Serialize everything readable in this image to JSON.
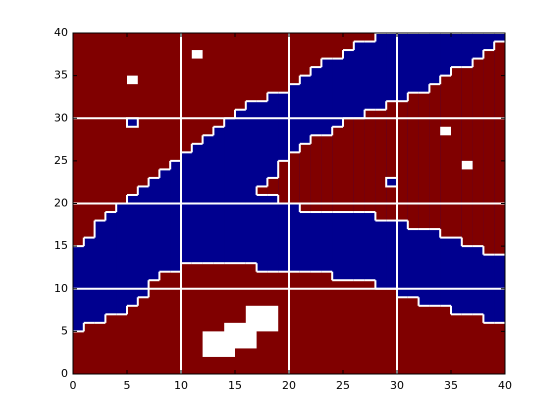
{
  "chart_data": {
    "type": "region-map",
    "xlim": [
      0,
      40
    ],
    "ylim": [
      0,
      40
    ],
    "xticks": [
      0,
      5,
      10,
      15,
      20,
      25,
      30,
      35,
      40
    ],
    "yticks": [
      0,
      5,
      10,
      15,
      20,
      25,
      30,
      35,
      40
    ],
    "grid": [
      10,
      20,
      30
    ],
    "background_color": "#800000",
    "region_color": "#00008f",
    "boundary_color": "#ffffff",
    "x": [
      0,
      1,
      2,
      3,
      4,
      5,
      6,
      7,
      8,
      9,
      10,
      11,
      12,
      13,
      14,
      15,
      16,
      17,
      18,
      19,
      20,
      21,
      22,
      23,
      24,
      25,
      26,
      27,
      28,
      29,
      30,
      31,
      32,
      33,
      34,
      35,
      36,
      37,
      38,
      39
    ],
    "blue_lower": [
      5,
      6,
      6,
      7,
      7,
      8,
      9,
      11,
      12,
      12,
      13,
      13,
      13,
      13,
      13,
      13,
      13,
      12,
      12,
      12,
      12,
      12,
      12,
      12,
      11,
      11,
      11,
      11,
      10,
      10,
      9,
      9,
      8,
      8,
      8,
      7,
      7,
      7,
      6,
      6
    ],
    "blue_upper": [
      15,
      16,
      18,
      19,
      20,
      21,
      22,
      23,
      24,
      25,
      26,
      27,
      28,
      29,
      30,
      31,
      32,
      32,
      33,
      33,
      34,
      35,
      36,
      37,
      37,
      38,
      39,
      39,
      40,
      40,
      40,
      40,
      40,
      40,
      40,
      40,
      40,
      40,
      40,
      40
    ],
    "red_bottom": [
      null,
      null,
      null,
      null,
      null,
      null,
      null,
      null,
      null,
      null,
      null,
      null,
      null,
      null,
      null,
      null,
      null,
      21,
      21,
      20,
      20,
      19,
      19,
      19,
      19,
      19,
      19,
      19,
      18,
      18,
      18,
      17,
      17,
      17,
      16,
      16,
      15,
      15,
      14,
      14
    ],
    "red_top": [
      null,
      null,
      null,
      null,
      null,
      null,
      null,
      null,
      null,
      null,
      null,
      null,
      null,
      null,
      null,
      null,
      null,
      22,
      23,
      25,
      26,
      27,
      28,
      28,
      29,
      30,
      30,
      31,
      31,
      32,
      32,
      33,
      33,
      34,
      35,
      36,
      36,
      37,
      38,
      39
    ],
    "blue_cells": [
      [
        5,
        29
      ],
      [
        29,
        22
      ]
    ],
    "obstacles": [
      [
        5,
        6,
        34,
        35
      ],
      [
        11,
        12,
        37,
        38
      ],
      [
        34,
        35,
        28,
        29
      ],
      [
        36,
        37,
        24,
        25
      ],
      [
        12,
        15,
        2,
        5
      ],
      [
        14,
        17,
        3,
        6
      ],
      [
        16,
        19,
        5,
        8
      ]
    ]
  }
}
